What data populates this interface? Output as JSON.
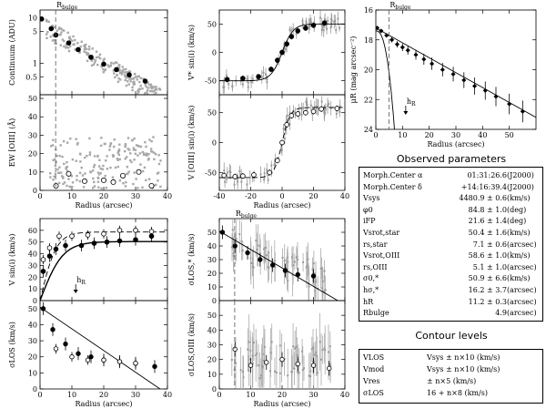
{
  "panels": [
    {
      "id": "continuum",
      "x": 0,
      "y": 0,
      "w": 0,
      "h": 0
    }
  ],
  "chart_data": [
    {
      "type": "scatter",
      "id": "continuum",
      "ylabel": "Continuum (ADU)",
      "xlim": [
        0,
        40
      ],
      "ylim_log": [
        0.2,
        15
      ],
      "ytick_labels": [
        "0.5",
        "1",
        "5",
        "10"
      ],
      "ytick_values": [
        0.5,
        1,
        5,
        10
      ],
      "xtick_values": [
        0,
        10,
        20,
        30,
        40
      ],
      "vline_label": "R_bulge",
      "vline_x": 4.9,
      "binned": [
        [
          0.5,
          9.5
        ],
        [
          3.5,
          5.8
        ],
        [
          5,
          4.2
        ],
        [
          9,
          2.8
        ],
        [
          12,
          2.0
        ],
        [
          16,
          1.35
        ],
        [
          20,
          0.95
        ],
        [
          24,
          0.72
        ],
        [
          28,
          0.55
        ],
        [
          33,
          0.4
        ]
      ]
    },
    {
      "type": "scatter",
      "id": "ew_oiii",
      "ylabel": "EW [OIII] (Å)",
      "xlabel": "Radius (arcsec)",
      "xlim": [
        0,
        40
      ],
      "ylim": [
        0,
        52
      ],
      "ytick_labels": [
        "0",
        "10",
        "20",
        "30",
        "40",
        "50"
      ],
      "xtick_labels": [
        "0",
        "10",
        "20",
        "30",
        "40"
      ],
      "binned": [
        [
          5,
          2.5
        ],
        [
          9,
          9
        ],
        [
          14,
          5
        ],
        [
          20,
          5.5
        ],
        [
          23,
          4.5
        ],
        [
          26,
          8
        ],
        [
          31,
          10
        ],
        [
          35,
          2.5
        ]
      ]
    },
    {
      "type": "line",
      "id": "vstar_profile",
      "ylabel": "V* sin(i) (km/s)",
      "xlim": [
        -40,
        40
      ],
      "ylim": [
        -75,
        75
      ],
      "ytick_labels": [
        "-50",
        "0",
        "50"
      ],
      "xtick_values": [
        -40,
        -20,
        0,
        20,
        40
      ],
      "model_asymptote": 50.4,
      "binned": [
        [
          -35,
          -48
        ],
        [
          -25,
          -46
        ],
        [
          -15,
          -43
        ],
        [
          -7,
          -30
        ],
        [
          -3,
          -14
        ],
        [
          0,
          0
        ],
        [
          3,
          15
        ],
        [
          6,
          28
        ],
        [
          10,
          38
        ],
        [
          15,
          43
        ],
        [
          20,
          48
        ],
        [
          27,
          52
        ]
      ]
    },
    {
      "type": "line",
      "id": "voiii_profile",
      "ylabel": "V [OIII] sin(i) (km/s)",
      "xlabel": "Radius (arcsec)",
      "xlim": [
        -40,
        40
      ],
      "ylim": [
        -80,
        80
      ],
      "ytick_labels": [
        "-50",
        "0",
        "50"
      ],
      "xtick_labels": [
        "-40",
        "-20",
        "0",
        "20",
        "40"
      ],
      "model_asymptote": 58.6,
      "binned": [
        [
          -37,
          -55
        ],
        [
          -30,
          -57
        ],
        [
          -25,
          -56
        ],
        [
          -18,
          -54
        ],
        [
          -8,
          -50
        ],
        [
          -3,
          -30
        ],
        [
          0,
          0
        ],
        [
          3,
          30
        ],
        [
          6,
          45
        ],
        [
          10,
          48
        ],
        [
          15,
          50
        ],
        [
          20,
          52
        ],
        [
          25,
          56
        ],
        [
          35,
          57
        ]
      ]
    },
    {
      "type": "line",
      "id": "surface_brightness",
      "ylabel": "μR (mag arcsec⁻²)",
      "xlabel": "Radius (arcsec)",
      "xlim": [
        0,
        60
      ],
      "ylim": [
        16,
        24
      ],
      "ytick_labels": [
        "16",
        "18",
        "20",
        "22",
        "24"
      ],
      "xtick_labels": [
        "0",
        "10",
        "20",
        "30",
        "40",
        "50"
      ],
      "vline_label": "R_bulge",
      "vline_x": 4.9,
      "hR_label": "h_R",
      "hR_x": 11.2,
      "binned": [
        [
          0.5,
          17.2
        ],
        [
          2,
          17.4
        ],
        [
          4,
          17.7
        ],
        [
          6,
          18.0
        ],
        [
          8,
          18.3
        ],
        [
          10,
          18.5
        ],
        [
          12,
          18.7
        ],
        [
          15,
          19.0
        ],
        [
          18,
          19.3
        ],
        [
          21,
          19.6
        ],
        [
          25,
          20.0
        ],
        [
          29,
          20.3
        ],
        [
          33,
          20.7
        ],
        [
          37,
          21.1
        ],
        [
          41,
          21.4
        ],
        [
          45,
          21.8
        ],
        [
          50,
          22.3
        ],
        [
          55,
          22.8
        ]
      ]
    },
    {
      "type": "line",
      "id": "vrot_radius",
      "ylabel": "V sin(i) (km/s)",
      "xlim": [
        0,
        40
      ],
      "ylim": [
        0,
        70
      ],
      "ytick_labels": [
        "0",
        "10",
        "20",
        "30",
        "40",
        "50",
        "60"
      ],
      "xtick_values": [
        0,
        10,
        20,
        30,
        40
      ],
      "hR_label": "h_R",
      "hR_x": 11.2,
      "stars_binned": [
        [
          1,
          25
        ],
        [
          3,
          38
        ],
        [
          5,
          44
        ],
        [
          8,
          47
        ],
        [
          13,
          47
        ],
        [
          17,
          49
        ],
        [
          21,
          50
        ],
        [
          25,
          51
        ],
        [
          30,
          52
        ],
        [
          35,
          55
        ]
      ],
      "gas_binned": [
        [
          1,
          35
        ],
        [
          3,
          45
        ],
        [
          6,
          55
        ],
        [
          10,
          55
        ],
        [
          15,
          56
        ],
        [
          20,
          57
        ],
        [
          25,
          60
        ],
        [
          30,
          60
        ],
        [
          35,
          59
        ]
      ]
    },
    {
      "type": "line",
      "id": "sigma_los",
      "ylabel": "σLOS (km/s)",
      "xlabel": "Radius (arcsec)",
      "xlim": [
        0,
        40
      ],
      "ylim": [
        0,
        55
      ],
      "ytick_labels": [
        "0",
        "10",
        "20",
        "30",
        "40",
        "50"
      ],
      "xtick_labels": [
        "0",
        "10",
        "20",
        "30",
        "40"
      ],
      "stars_binned": [
        [
          1,
          50
        ],
        [
          4,
          37
        ],
        [
          8,
          28
        ],
        [
          12,
          22
        ],
        [
          16,
          20
        ],
        [
          20,
          18
        ],
        [
          25,
          17
        ],
        [
          30,
          16
        ],
        [
          36,
          14
        ]
      ],
      "gas_binned": [
        [
          5,
          25
        ],
        [
          10,
          20
        ],
        [
          15,
          18
        ],
        [
          20,
          18
        ],
        [
          25,
          17
        ],
        [
          30,
          16
        ]
      ]
    },
    {
      "type": "line",
      "id": "sigma_los_star",
      "ylabel": "σLOS,* (km/s)",
      "xlim": [
        0,
        40
      ],
      "ylim": [
        0,
        60
      ],
      "ytick_labels": [
        "0",
        "10",
        "20",
        "30",
        "40",
        "50"
      ],
      "xtick_values": [
        0,
        10,
        20,
        30,
        40
      ],
      "vline_label": "R_bulge",
      "vline_x": 4.9,
      "binned": [
        [
          1,
          50
        ],
        [
          5,
          40
        ],
        [
          9,
          35
        ],
        [
          13,
          30
        ],
        [
          17,
          26
        ],
        [
          21,
          22
        ],
        [
          25,
          19
        ],
        [
          30,
          18
        ]
      ]
    },
    {
      "type": "scatter",
      "id": "sigma_los_oiii",
      "ylabel": "σLOS,OIII (km/s)",
      "xlabel": "Radius (arcsec)",
      "xlim": [
        0,
        40
      ],
      "ylim": [
        0,
        60
      ],
      "ytick_labels": [
        "0",
        "10",
        "20",
        "30",
        "40",
        "50"
      ],
      "xtick_labels": [
        "0",
        "10",
        "20",
        "30",
        "40"
      ],
      "binned": [
        [
          5,
          27
        ],
        [
          10,
          16
        ],
        [
          15,
          18
        ],
        [
          20,
          20
        ],
        [
          25,
          17
        ],
        [
          30,
          16
        ],
        [
          35,
          14
        ]
      ]
    }
  ],
  "observed": {
    "title": "Observed parameters",
    "rows": [
      {
        "name": "Morph.Center α",
        "value": "01:31:26.6",
        "unit": "(J2000)"
      },
      {
        "name": "Morph.Center δ",
        "value": "+14:16:39.4",
        "unit": "(J2000)"
      },
      {
        "name": "Vsys",
        "value": "4480.9 ± 0.6",
        "unit": "(km/s)"
      },
      {
        "name": "φ0",
        "value": "84.8 ± 1.0",
        "unit": "(deg)"
      },
      {
        "name": "iFP",
        "value": "21.6 ± 1.4",
        "unit": "(deg)"
      },
      {
        "name": "Vsrot,star",
        "value": "50.4 ± 1.6",
        "unit": "(km/s)"
      },
      {
        "name": "rs,star",
        "value": "7.1 ± 0.6",
        "unit": "(arcsec)"
      },
      {
        "name": "Vsrot,OIII",
        "value": "58.6 ± 1.0",
        "unit": "(km/s)"
      },
      {
        "name": "rs,OIII",
        "value": "5.1 ± 1.0",
        "unit": "(arcsec)"
      },
      {
        "name": "σ0,*",
        "value": "50.9 ± 6.6",
        "unit": "(km/s)"
      },
      {
        "name": "hσ,*",
        "value": "16.2 ± 3.7",
        "unit": "(arcsec)"
      },
      {
        "name": "hR",
        "value": "11.2 ± 0.3",
        "unit": "(arcsec)"
      },
      {
        "name": "Rbulge",
        "value": "4.9",
        "unit": "(arcsec)"
      }
    ]
  },
  "contours": {
    "title": "Contour levels",
    "rows": [
      {
        "name": "VLOS",
        "value": "Vsys ± n×10 (km/s)"
      },
      {
        "name": "Vmod",
        "value": "Vsys ± n×10 (km/s)"
      },
      {
        "name": "Vres",
        "value": "± n×5 (km/s)"
      },
      {
        "name": "σLOS",
        "value": "16 + n×8 (km/s)"
      }
    ]
  }
}
